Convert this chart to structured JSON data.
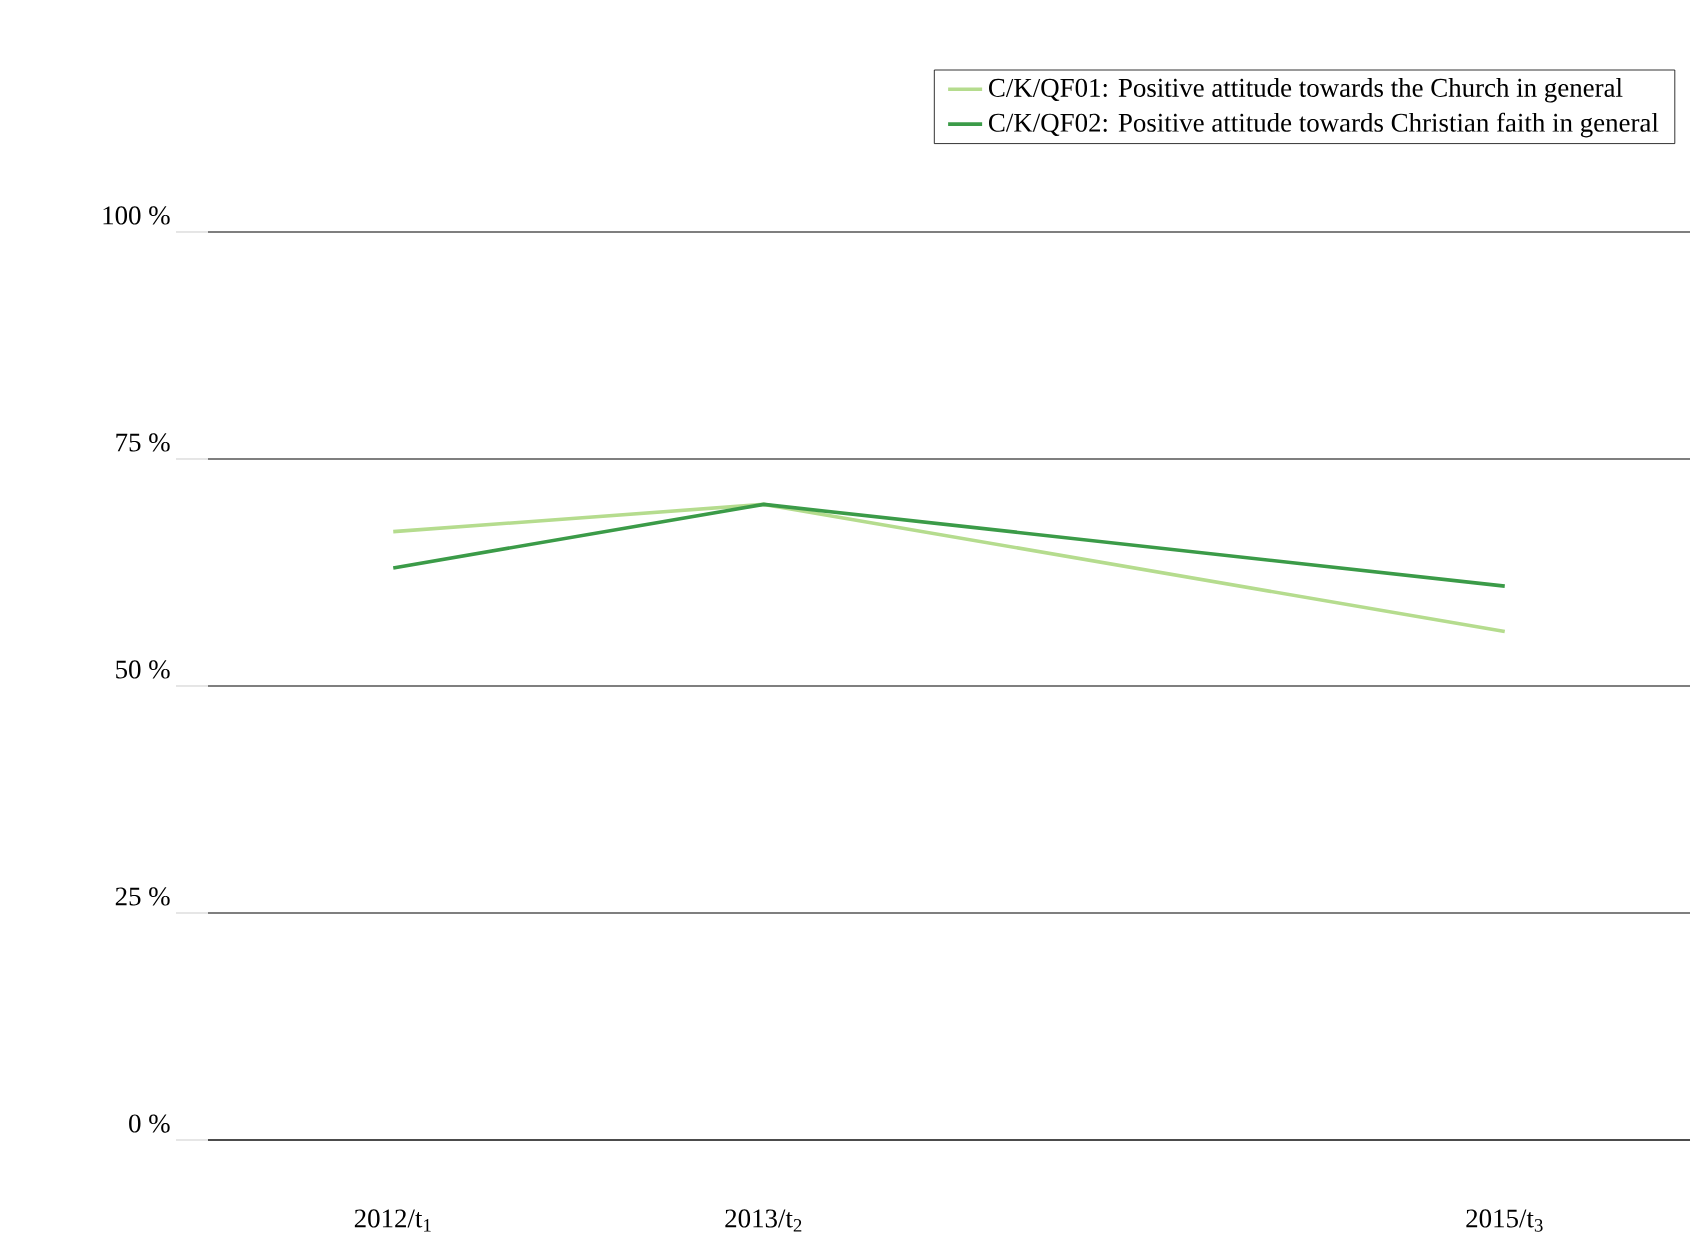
{
  "chart_data": {
    "type": "line",
    "categories": [
      "2012/t$_{1}$",
      "2013/t$_{2}$",
      null,
      "2015/t$_{3}$"
    ],
    "series": [
      {
        "name": "C/K/QF01: Positive attitude towards the Church in general",
        "color": "#b5dc8e",
        "values": [
          67,
          70,
          null,
          56
        ]
      },
      {
        "name": "C/K/QF02: Positive attitude towards Christian faith in general",
        "color": "#3b9b48",
        "values": [
          63,
          70,
          null,
          61
        ]
      }
    ],
    "ylim": [
      0,
      100
    ],
    "yticks": [
      {
        "value": 0,
        "label": "0 %"
      },
      {
        "value": 25,
        "label": "25 %"
      },
      {
        "value": 50,
        "label": "50 %"
      },
      {
        "value": 75,
        "label": "75 %"
      },
      {
        "value": 100,
        "label": "100 %"
      }
    ],
    "grid": "y",
    "legend": "top",
    "marker": "none",
    "line_style": "solid"
  }
}
